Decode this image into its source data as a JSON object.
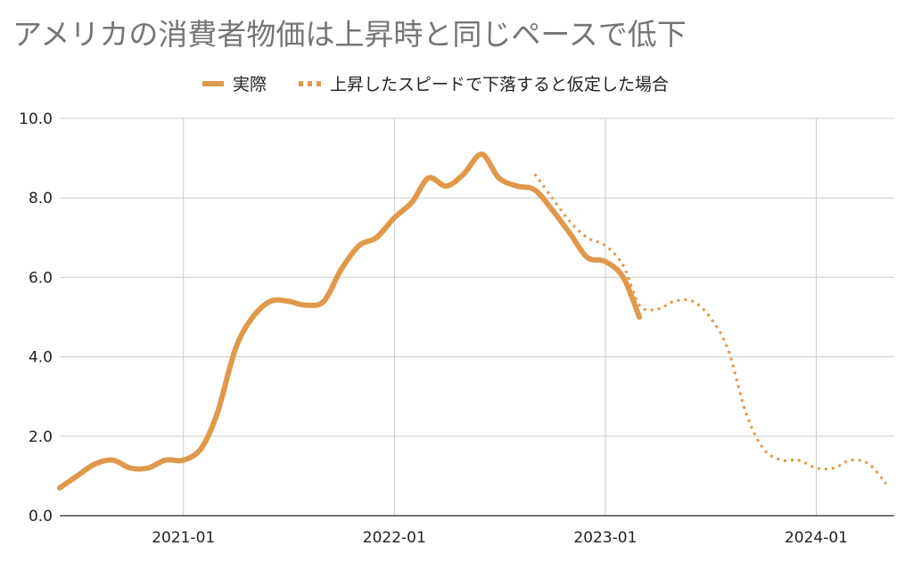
{
  "chart_data": {
    "type": "line",
    "title": "アメリカの消費者物価は上昇時と同じペースで低下",
    "xlabel": "",
    "ylabel": "",
    "x_range": [
      "2020-06-01",
      "2024-05-15"
    ],
    "ylim": [
      0,
      10
    ],
    "y_ticks": [
      "0.0",
      "2.0",
      "4.0",
      "6.0",
      "8.0",
      "10.0"
    ],
    "x_ticks": [
      {
        "date": "2021-01-01",
        "label": "2021-01"
      },
      {
        "date": "2022-01-01",
        "label": "2022-01"
      },
      {
        "date": "2023-01-01",
        "label": "2023-01"
      },
      {
        "date": "2024-01-01",
        "label": "2024-01"
      }
    ],
    "grid": true,
    "legend_position": "top-center",
    "series": [
      {
        "name": "実際",
        "style": "solid",
        "color": "#e0994a",
        "points": [
          [
            "2020-06-01",
            0.7
          ],
          [
            "2020-07-01",
            1.0
          ],
          [
            "2020-08-01",
            1.3
          ],
          [
            "2020-09-01",
            1.4
          ],
          [
            "2020-10-01",
            1.2
          ],
          [
            "2020-11-01",
            1.2
          ],
          [
            "2020-12-01",
            1.4
          ],
          [
            "2021-01-01",
            1.4
          ],
          [
            "2021-02-01",
            1.7
          ],
          [
            "2021-03-01",
            2.6
          ],
          [
            "2021-04-01",
            4.2
          ],
          [
            "2021-05-01",
            5.0
          ],
          [
            "2021-06-01",
            5.4
          ],
          [
            "2021-07-01",
            5.4
          ],
          [
            "2021-08-01",
            5.3
          ],
          [
            "2021-09-01",
            5.4
          ],
          [
            "2021-10-01",
            6.2
          ],
          [
            "2021-11-01",
            6.8
          ],
          [
            "2021-12-01",
            7.0
          ],
          [
            "2022-01-01",
            7.5
          ],
          [
            "2022-02-01",
            7.9
          ],
          [
            "2022-03-01",
            8.5
          ],
          [
            "2022-04-01",
            8.3
          ],
          [
            "2022-05-01",
            8.6
          ],
          [
            "2022-06-01",
            9.1
          ],
          [
            "2022-07-01",
            8.5
          ],
          [
            "2022-08-01",
            8.3
          ],
          [
            "2022-09-01",
            8.2
          ],
          [
            "2022-10-01",
            7.7
          ],
          [
            "2022-11-01",
            7.1
          ],
          [
            "2022-12-01",
            6.5
          ],
          [
            "2023-01-01",
            6.4
          ],
          [
            "2023-02-01",
            6.0
          ],
          [
            "2023-03-01",
            5.0
          ]
        ]
      },
      {
        "name": "上昇したスピードで下落すると仮定した場合",
        "style": "dotted",
        "color": "#e0994a",
        "points": [
          [
            "2022-09-01",
            8.6
          ],
          [
            "2022-10-01",
            8.0
          ],
          [
            "2022-11-01",
            7.4
          ],
          [
            "2022-12-01",
            7.0
          ],
          [
            "2023-01-01",
            6.8
          ],
          [
            "2023-02-01",
            6.3
          ],
          [
            "2023-03-01",
            5.3
          ],
          [
            "2023-04-01",
            5.2
          ],
          [
            "2023-05-01",
            5.4
          ],
          [
            "2023-06-01",
            5.4
          ],
          [
            "2023-07-01",
            5.0
          ],
          [
            "2023-08-01",
            4.2
          ],
          [
            "2023-09-01",
            2.6
          ],
          [
            "2023-10-01",
            1.7
          ],
          [
            "2023-11-01",
            1.4
          ],
          [
            "2023-12-01",
            1.4
          ],
          [
            "2024-01-01",
            1.2
          ],
          [
            "2024-02-01",
            1.2
          ],
          [
            "2024-03-01",
            1.4
          ],
          [
            "2024-04-01",
            1.3
          ],
          [
            "2024-05-01",
            0.8
          ]
        ]
      }
    ]
  }
}
